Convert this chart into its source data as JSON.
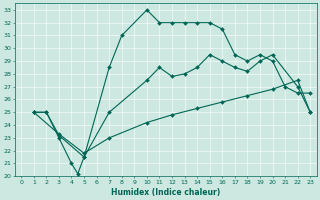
{
  "xlabel": "Humidex (Indice chaleur)",
  "bg_color": "#cce8e0",
  "line_color": "#006655",
  "xlim": [
    -0.5,
    23.5
  ],
  "ylim": [
    20,
    33.5
  ],
  "xticks": [
    0,
    1,
    2,
    3,
    4,
    5,
    6,
    7,
    8,
    9,
    10,
    11,
    12,
    13,
    14,
    15,
    16,
    17,
    18,
    19,
    20,
    21,
    22,
    23
  ],
  "yticks": [
    20,
    21,
    22,
    23,
    24,
    25,
    26,
    27,
    28,
    29,
    30,
    31,
    32,
    33
  ],
  "line1_x": [
    1,
    2,
    3,
    4,
    4.5,
    5,
    7,
    8,
    10,
    11,
    12,
    13,
    14,
    15,
    16,
    17,
    18,
    19,
    20,
    21,
    22,
    23
  ],
  "line1_y": [
    25,
    25,
    23,
    21,
    20.2,
    21.5,
    28.5,
    31,
    33,
    32,
    32,
    32,
    32,
    32,
    31.5,
    29.5,
    29,
    29.5,
    29,
    27,
    26.5,
    26.5
  ],
  "line2_x": [
    1,
    2,
    3,
    5,
    7,
    10,
    11,
    12,
    13,
    14,
    15,
    16,
    17,
    18,
    19,
    20,
    22,
    23
  ],
  "line2_y": [
    25,
    25,
    23.2,
    21.5,
    25,
    27.5,
    28.5,
    27.8,
    28,
    28.5,
    29.5,
    29,
    28.5,
    28.2,
    29,
    29.5,
    27,
    25
  ],
  "line3_x": [
    1,
    3,
    5,
    7,
    10,
    12,
    14,
    16,
    18,
    20,
    22,
    23
  ],
  "line3_y": [
    25,
    23.3,
    21.8,
    23,
    24.2,
    24.8,
    25.3,
    25.8,
    26.3,
    26.8,
    27.5,
    25
  ]
}
